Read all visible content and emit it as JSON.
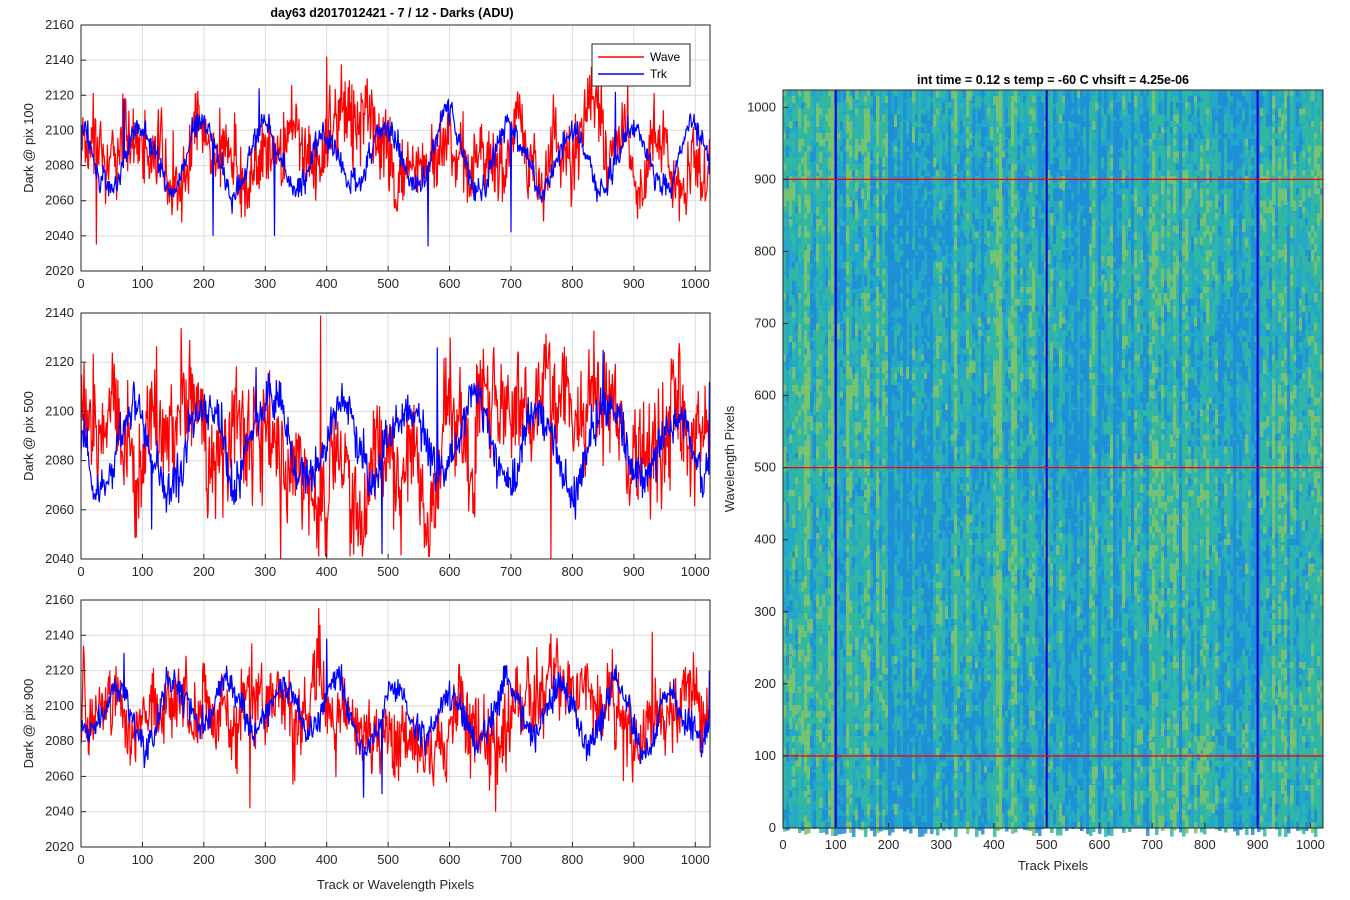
{
  "figure_title": "day63 d2017012421 - 7 / 12 - Darks (ADU)",
  "chart_data": [
    {
      "type": "line",
      "ylabel": "Dark @ pix 100",
      "xlabel": "",
      "xlim": [
        0,
        1024
      ],
      "ylim": [
        2020,
        2160
      ],
      "xticks": [
        0,
        100,
        200,
        300,
        400,
        500,
        600,
        700,
        800,
        900,
        1000
      ],
      "yticks": [
        2020,
        2040,
        2060,
        2080,
        2100,
        2120,
        2140,
        2160
      ],
      "grid": true,
      "legend": "top-right",
      "series": [
        {
          "name": "Wave",
          "color": "#ff0000",
          "mean": 2090,
          "noise": 15,
          "amp": 6,
          "period": 58,
          "x": [
            0,
            25,
            150,
            400,
            890,
            1024
          ],
          "y": [
            2080,
            2035,
            2100,
            2142,
            2128,
            2095
          ]
        },
        {
          "name": "Trk",
          "color": "#0000ff",
          "mean": 2085,
          "noise": 5,
          "amp": 18,
          "period": 100,
          "x": [
            0,
            70,
            215,
            290,
            315,
            565,
            700,
            870,
            1024
          ],
          "y": [
            2080,
            2118,
            2040,
            2124,
            2040,
            2034,
            2042,
            2122,
            2075
          ]
        }
      ]
    },
    {
      "type": "line",
      "ylabel": "Dark @ pix 500",
      "xlabel": "",
      "xlim": [
        0,
        1024
      ],
      "ylim": [
        2040,
        2140
      ],
      "xticks": [
        0,
        100,
        200,
        300,
        400,
        500,
        600,
        700,
        800,
        900,
        1000
      ],
      "yticks": [
        2040,
        2060,
        2080,
        2100,
        2120,
        2140
      ],
      "grid": true,
      "series": [
        {
          "name": "Wave",
          "color": "#ff0000",
          "mean": 2088,
          "noise": 15,
          "amp": 6,
          "period": 60,
          "x": [
            0,
            325,
            390,
            765
          ],
          "y": [
            2085,
            2040,
            2139,
            2040
          ]
        },
        {
          "name": "Trk",
          "color": "#0000ff",
          "mean": 2088,
          "noise": 6,
          "amp": 15,
          "period": 110,
          "x": [
            0,
            115,
            285,
            490,
            580,
            850,
            1024
          ],
          "y": [
            2080,
            2052,
            2118,
            2042,
            2126,
            2125,
            2112
          ]
        }
      ]
    },
    {
      "type": "line",
      "ylabel": "Dark @ pix 900",
      "xlabel": "Track or Wavelength Pixels",
      "xlim": [
        0,
        1024
      ],
      "ylim": [
        2020,
        2160
      ],
      "xticks": [
        0,
        100,
        200,
        300,
        400,
        500,
        600,
        700,
        800,
        900,
        1000
      ],
      "yticks": [
        2020,
        2040,
        2060,
        2080,
        2100,
        2120,
        2140,
        2160
      ],
      "grid": true,
      "series": [
        {
          "name": "Wave",
          "color": "#ff0000",
          "mean": 2090,
          "noise": 15,
          "amp": 5,
          "period": 55,
          "x": [
            0,
            275,
            675,
            930
          ],
          "y": [
            2078,
            2042,
            2040,
            2142
          ]
        },
        {
          "name": "Trk",
          "color": "#0000ff",
          "mean": 2095,
          "noise": 6,
          "amp": 15,
          "period": 90,
          "x": [
            0,
            70,
            400,
            460,
            490,
            1024
          ],
          "y": [
            2085,
            2130,
            2138,
            2048,
            2050,
            2120
          ]
        }
      ]
    },
    {
      "type": "heatmap",
      "title": "int time = 0.12 s    temp = -60 C    vhsift = 4.25e-06",
      "xlabel": "Track Pixels",
      "ylabel": "Wavelength Pixels",
      "xlim": [
        0,
        1024
      ],
      "ylim": [
        0,
        1024
      ],
      "xticks": [
        0,
        100,
        200,
        300,
        400,
        500,
        600,
        700,
        800,
        900,
        1000
      ],
      "yticks": [
        0,
        100,
        200,
        300,
        400,
        500,
        600,
        700,
        800,
        900,
        1000
      ],
      "colormap": [
        "#1f8dd6",
        "#23a8c8",
        "#33b7a0",
        "#7dc46b"
      ],
      "vertical_lines": {
        "color": "#0000cc",
        "x": [
          100,
          500,
          900
        ]
      },
      "horizontal_lines": {
        "color": "#ff0000",
        "y": [
          100,
          500,
          900
        ]
      }
    }
  ]
}
